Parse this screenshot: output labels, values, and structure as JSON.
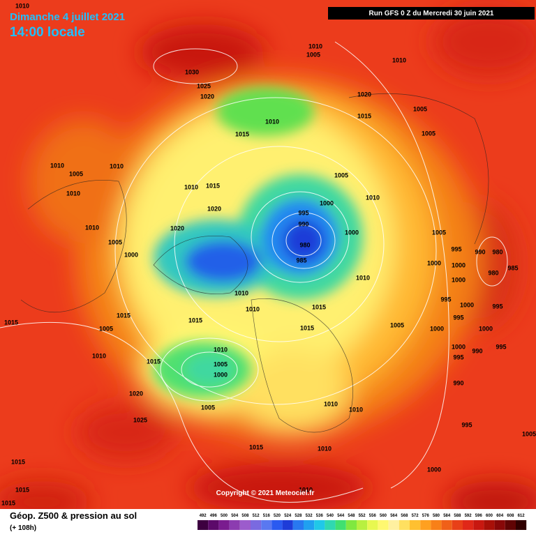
{
  "header": {
    "date": "Dimanche 4 juillet 2021",
    "time": "14:00 locale",
    "run": "Run GFS 0 Z du Mercredi 30 juin 2021"
  },
  "copyright": "Copyright © 2021 Meteociel.fr",
  "footer": {
    "title": "Géop. Z500 & pression au sol",
    "lead": "(+ 108h)"
  },
  "legend": {
    "values": [
      492,
      496,
      500,
      504,
      508,
      512,
      516,
      520,
      524,
      528,
      532,
      536,
      540,
      544,
      548,
      552,
      556,
      560,
      564,
      568,
      572,
      576,
      580,
      584,
      588,
      592,
      596,
      600,
      604,
      608,
      612
    ],
    "colors": [
      "#3d0040",
      "#5c0a6a",
      "#7a1c8f",
      "#8c3cb0",
      "#9c5ccc",
      "#7a6ae0",
      "#5a78f0",
      "#2a5af0",
      "#1e3cd8",
      "#2878f0",
      "#20a0f0",
      "#20c8e8",
      "#30d8b0",
      "#40e070",
      "#80e840",
      "#b8f040",
      "#e8f850",
      "#fff870",
      "#fff0a0",
      "#ffe060",
      "#ffc030",
      "#ffa020",
      "#f88018",
      "#f06018",
      "#e84018",
      "#e02818",
      "#c81810",
      "#a81008",
      "#880808",
      "#600404",
      "#300000"
    ]
  },
  "isobar_labels": [
    1010,
    1010,
    1005,
    1010,
    1030,
    1025,
    1020,
    1020,
    1005,
    1015,
    1010,
    1005,
    1015,
    1010,
    1005,
    1010,
    1005,
    1010,
    1015,
    1010,
    1010,
    1000,
    1020,
    995,
    990,
    1020,
    1010,
    1000,
    1005,
    1005,
    980,
    1000,
    985,
    995,
    990,
    980,
    1000,
    1000,
    980,
    985,
    1010,
    1000,
    1010,
    995,
    1000,
    1010,
    1015,
    995,
    1015,
    995,
    1015,
    1015,
    1015,
    1005,
    1000,
    1000,
    1005,
    995,
    990,
    1000,
    1010,
    1010,
    1015,
    995,
    1005,
    1000,
    990,
    1020,
    1010,
    1010,
    1005,
    1025,
    995,
    1005,
    1015,
    1010,
    1015,
    1000,
    1015,
    1010,
    1015
  ]
}
